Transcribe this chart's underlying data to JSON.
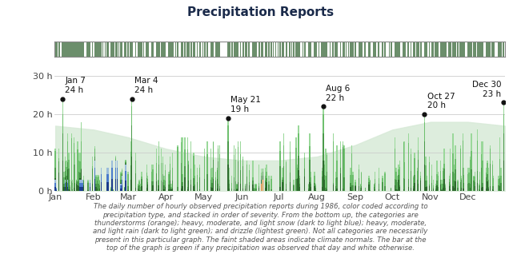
{
  "title": "Precipitation Reports",
  "title_color": "#1a2a4a",
  "title_fontsize": 11,
  "background_color": "#ffffff",
  "plot_bg_color": "#ffffff",
  "color_heavy_rain": "#2d6a2d",
  "color_mod_rain": "#4a9a4a",
  "color_light_rain": "#6ec06e",
  "color_drizzle": "#9ad89a",
  "color_heavy_snow": "#1a3a8b",
  "color_mod_snow": "#4a7acb",
  "color_light_snow": "#9abcdb",
  "color_thunder": "#e07820",
  "color_indicator_green": "#6b8e6b",
  "color_indicator_white": "#ffffff",
  "color_grid": "#cccccc",
  "color_shade": "#d8ead8",
  "color_caption": "#555555",
  "color_axis": "#444444",
  "yticks": [
    0,
    10,
    20,
    30
  ],
  "ylim": [
    0,
    34
  ],
  "month_starts_day": [
    1,
    32,
    60,
    91,
    121,
    152,
    182,
    213,
    244,
    274,
    305,
    335
  ],
  "month_names": [
    "Jan",
    "Feb",
    "Mar",
    "Apr",
    "May",
    "Jun",
    "Jul",
    "Aug",
    "Sep",
    "Oct",
    "Nov",
    "Dec"
  ],
  "annotations": [
    {
      "day": 7,
      "label": "Jan 7\n24 h",
      "value": 24
    },
    {
      "day": 63,
      "label": "Mar 4\n24 h",
      "value": 24
    },
    {
      "day": 141,
      "label": "May 21\n19 h",
      "value": 19
    },
    {
      "day": 218,
      "label": "Aug 6\n22 h",
      "value": 22
    },
    {
      "day": 300,
      "label": "Oct 27\n20 h",
      "value": 20
    },
    {
      "day": 364,
      "label": "Dec 30\n23 h",
      "value": 23
    }
  ],
  "climate_normals_x": [
    1,
    32,
    60,
    91,
    121,
    152,
    182,
    213,
    244,
    274,
    305,
    335,
    365
  ],
  "climate_normals_y": [
    17,
    16,
    14,
    11,
    9,
    8,
    8,
    9,
    12,
    16,
    18,
    18,
    17
  ],
  "caption": "The daily number of hourly observed precipitation reports during 1986, color coded according to\nprecipitation type, and stacked in order of severity. From the bottom up, the categories are\nthunderstorms (orange); heavy, moderate, and light snow (dark to light blue); heavy, moderate,\nand light rain (dark to light green); and drizzle (lightest green). Not all categories are necessarily\npresent in this particular graph. The faint shaded areas indicate climate normals. The bar at the\ntop of the graph is green if any precipitation was observed that day and white otherwise."
}
